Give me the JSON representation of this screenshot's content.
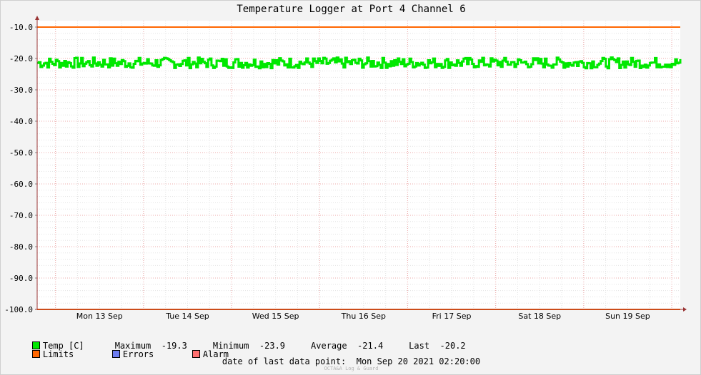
{
  "chart_data": {
    "type": "line",
    "title": "Temperature Logger at Port 4 Channel 6",
    "ylim": [
      -100,
      -10
    ],
    "y_ticks": [
      "-10.0",
      "-20.0",
      "-30.0",
      "-40.0",
      "-50.0",
      "-60.0",
      "-70.0",
      "-80.0",
      "-90.0",
      "-100.0"
    ],
    "x_range": [
      "2021-09-12T19:00",
      "2021-09-20T02:20"
    ],
    "x_ticks": [
      "Mon 13 Sep",
      "Tue 14 Sep",
      "Wed 15 Sep",
      "Thu 16 Sep",
      "Fri 17 Sep",
      "Sat 18 Sep",
      "Sun 19 Sep"
    ],
    "grid": true,
    "legend_placement": "bottom",
    "colors": {
      "temp": "#00e800",
      "limits": "#ff6600",
      "errors": "#6c7cf0",
      "alarm": "#ff7070"
    },
    "series": [
      {
        "name": "Temp [C]",
        "summary": {
          "min": -23.9,
          "max": -19.3,
          "average": -21.4,
          "last": -20.2
        }
      },
      {
        "name": "Limits",
        "values": [
          -10,
          -100
        ]
      }
    ]
  },
  "legend": {
    "temp": {
      "label": "Temp [C]",
      "max_label": "Maximum",
      "max_value": "-19.3",
      "min_label": "Minimum",
      "min_value": "-23.9",
      "avg_label": "Average",
      "avg_value": "-21.4",
      "last_label": "Last",
      "last_value": "-20.2"
    },
    "limits": "Limits",
    "errors": "Errors",
    "alarm": "Alarm"
  },
  "last_data_point": "date of last data point:  Mon Sep 20 2021 02:20:00",
  "watermark": "OCTA&A Log & Guard"
}
